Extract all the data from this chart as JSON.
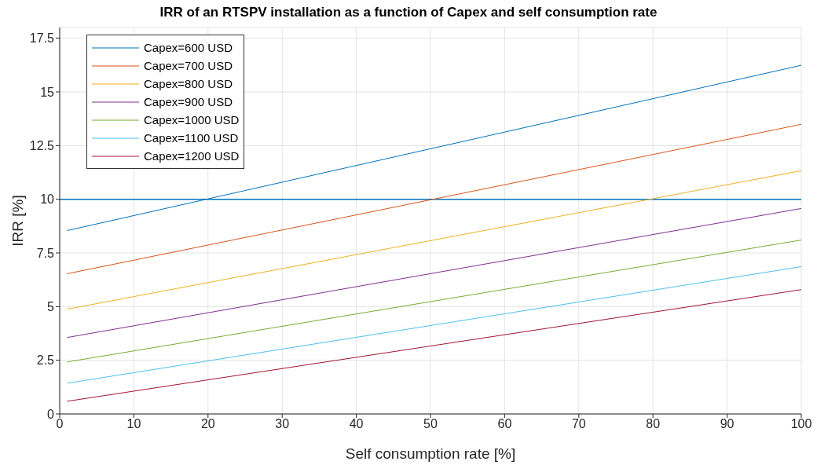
{
  "chart_data": {
    "type": "line",
    "title": "IRR of an RTSPV installation as a function of Capex and self consumption rate",
    "xlabel": "Self consumption rate [%]",
    "ylabel": "IRR [%]",
    "x": [
      1,
      100
    ],
    "series": [
      {
        "name": "Capex=600 USD",
        "color": "#0072bd",
        "values": [
          8.54,
          16.24
        ]
      },
      {
        "name": "Capex=700 USD",
        "color": "#d95319",
        "values": [
          6.53,
          13.49
        ]
      },
      {
        "name": "Capex=800 USD",
        "color": "#edb120",
        "values": [
          4.88,
          11.33
        ]
      },
      {
        "name": "Capex=900 USD",
        "color": "#7e2f8e",
        "values": [
          3.56,
          9.57
        ]
      },
      {
        "name": "Capex=1000 USD",
        "color": "#77ac30",
        "values": [
          2.42,
          8.1
        ]
      },
      {
        "name": "Capex=1100 USD",
        "color": "#4dbeee",
        "values": [
          1.43,
          6.86
        ]
      },
      {
        "name": "Capex=1200 USD",
        "color": "#a2142f",
        "values": [
          0.59,
          5.79
        ]
      }
    ],
    "ref_lines": [
      {
        "axis": "y",
        "value": 10,
        "color": "#0072bd",
        "line_style": "solid"
      }
    ],
    "xlim": [
      0,
      100
    ],
    "xticks": [
      0,
      10,
      20,
      30,
      40,
      50,
      60,
      70,
      80,
      90,
      100
    ],
    "ylim": [
      0,
      18
    ],
    "yticks": [
      0,
      2.5,
      5,
      7.5,
      10,
      12.5,
      15,
      17.5
    ],
    "grid": true,
    "legend": "top left",
    "marker": "none",
    "line_style": "solid"
  }
}
